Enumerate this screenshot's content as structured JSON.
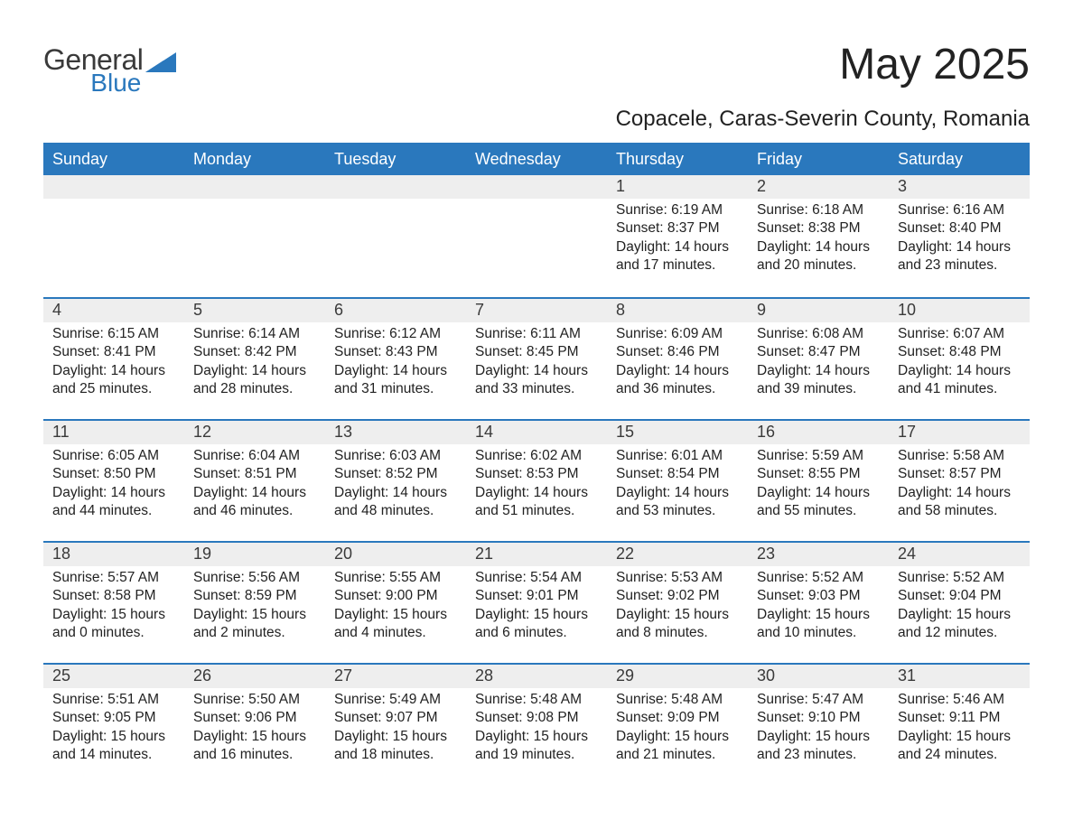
{
  "brand": {
    "word1": "General",
    "word2": "Blue",
    "word1_color": "#3a3a3a",
    "word2_color": "#2a78bd",
    "triangle_color": "#2a78bd"
  },
  "header": {
    "title": "May 2025",
    "location": "Copacele, Caras-Severin County, Romania"
  },
  "calendar": {
    "accent_color": "#2a78bd",
    "header_bg": "#2a78bd",
    "header_fg": "#ffffff",
    "daynum_bg": "#eeeeee",
    "text_color": "#222222",
    "days_of_week": [
      "Sunday",
      "Monday",
      "Tuesday",
      "Wednesday",
      "Thursday",
      "Friday",
      "Saturday"
    ],
    "weeks": [
      [
        null,
        null,
        null,
        null,
        {
          "n": "1",
          "sunrise": "6:19 AM",
          "sunset": "8:37 PM",
          "daylight": "14 hours and 17 minutes."
        },
        {
          "n": "2",
          "sunrise": "6:18 AM",
          "sunset": "8:38 PM",
          "daylight": "14 hours and 20 minutes."
        },
        {
          "n": "3",
          "sunrise": "6:16 AM",
          "sunset": "8:40 PM",
          "daylight": "14 hours and 23 minutes."
        }
      ],
      [
        {
          "n": "4",
          "sunrise": "6:15 AM",
          "sunset": "8:41 PM",
          "daylight": "14 hours and 25 minutes."
        },
        {
          "n": "5",
          "sunrise": "6:14 AM",
          "sunset": "8:42 PM",
          "daylight": "14 hours and 28 minutes."
        },
        {
          "n": "6",
          "sunrise": "6:12 AM",
          "sunset": "8:43 PM",
          "daylight": "14 hours and 31 minutes."
        },
        {
          "n": "7",
          "sunrise": "6:11 AM",
          "sunset": "8:45 PM",
          "daylight": "14 hours and 33 minutes."
        },
        {
          "n": "8",
          "sunrise": "6:09 AM",
          "sunset": "8:46 PM",
          "daylight": "14 hours and 36 minutes."
        },
        {
          "n": "9",
          "sunrise": "6:08 AM",
          "sunset": "8:47 PM",
          "daylight": "14 hours and 39 minutes."
        },
        {
          "n": "10",
          "sunrise": "6:07 AM",
          "sunset": "8:48 PM",
          "daylight": "14 hours and 41 minutes."
        }
      ],
      [
        {
          "n": "11",
          "sunrise": "6:05 AM",
          "sunset": "8:50 PM",
          "daylight": "14 hours and 44 minutes."
        },
        {
          "n": "12",
          "sunrise": "6:04 AM",
          "sunset": "8:51 PM",
          "daylight": "14 hours and 46 minutes."
        },
        {
          "n": "13",
          "sunrise": "6:03 AM",
          "sunset": "8:52 PM",
          "daylight": "14 hours and 48 minutes."
        },
        {
          "n": "14",
          "sunrise": "6:02 AM",
          "sunset": "8:53 PM",
          "daylight": "14 hours and 51 minutes."
        },
        {
          "n": "15",
          "sunrise": "6:01 AM",
          "sunset": "8:54 PM",
          "daylight": "14 hours and 53 minutes."
        },
        {
          "n": "16",
          "sunrise": "5:59 AM",
          "sunset": "8:55 PM",
          "daylight": "14 hours and 55 minutes."
        },
        {
          "n": "17",
          "sunrise": "5:58 AM",
          "sunset": "8:57 PM",
          "daylight": "14 hours and 58 minutes."
        }
      ],
      [
        {
          "n": "18",
          "sunrise": "5:57 AM",
          "sunset": "8:58 PM",
          "daylight": "15 hours and 0 minutes."
        },
        {
          "n": "19",
          "sunrise": "5:56 AM",
          "sunset": "8:59 PM",
          "daylight": "15 hours and 2 minutes."
        },
        {
          "n": "20",
          "sunrise": "5:55 AM",
          "sunset": "9:00 PM",
          "daylight": "15 hours and 4 minutes."
        },
        {
          "n": "21",
          "sunrise": "5:54 AM",
          "sunset": "9:01 PM",
          "daylight": "15 hours and 6 minutes."
        },
        {
          "n": "22",
          "sunrise": "5:53 AM",
          "sunset": "9:02 PM",
          "daylight": "15 hours and 8 minutes."
        },
        {
          "n": "23",
          "sunrise": "5:52 AM",
          "sunset": "9:03 PM",
          "daylight": "15 hours and 10 minutes."
        },
        {
          "n": "24",
          "sunrise": "5:52 AM",
          "sunset": "9:04 PM",
          "daylight": "15 hours and 12 minutes."
        }
      ],
      [
        {
          "n": "25",
          "sunrise": "5:51 AM",
          "sunset": "9:05 PM",
          "daylight": "15 hours and 14 minutes."
        },
        {
          "n": "26",
          "sunrise": "5:50 AM",
          "sunset": "9:06 PM",
          "daylight": "15 hours and 16 minutes."
        },
        {
          "n": "27",
          "sunrise": "5:49 AM",
          "sunset": "9:07 PM",
          "daylight": "15 hours and 18 minutes."
        },
        {
          "n": "28",
          "sunrise": "5:48 AM",
          "sunset": "9:08 PM",
          "daylight": "15 hours and 19 minutes."
        },
        {
          "n": "29",
          "sunrise": "5:48 AM",
          "sunset": "9:09 PM",
          "daylight": "15 hours and 21 minutes."
        },
        {
          "n": "30",
          "sunrise": "5:47 AM",
          "sunset": "9:10 PM",
          "daylight": "15 hours and 23 minutes."
        },
        {
          "n": "31",
          "sunrise": "5:46 AM",
          "sunset": "9:11 PM",
          "daylight": "15 hours and 24 minutes."
        }
      ]
    ],
    "labels": {
      "sunrise": "Sunrise: ",
      "sunset": "Sunset: ",
      "daylight": "Daylight: "
    }
  }
}
